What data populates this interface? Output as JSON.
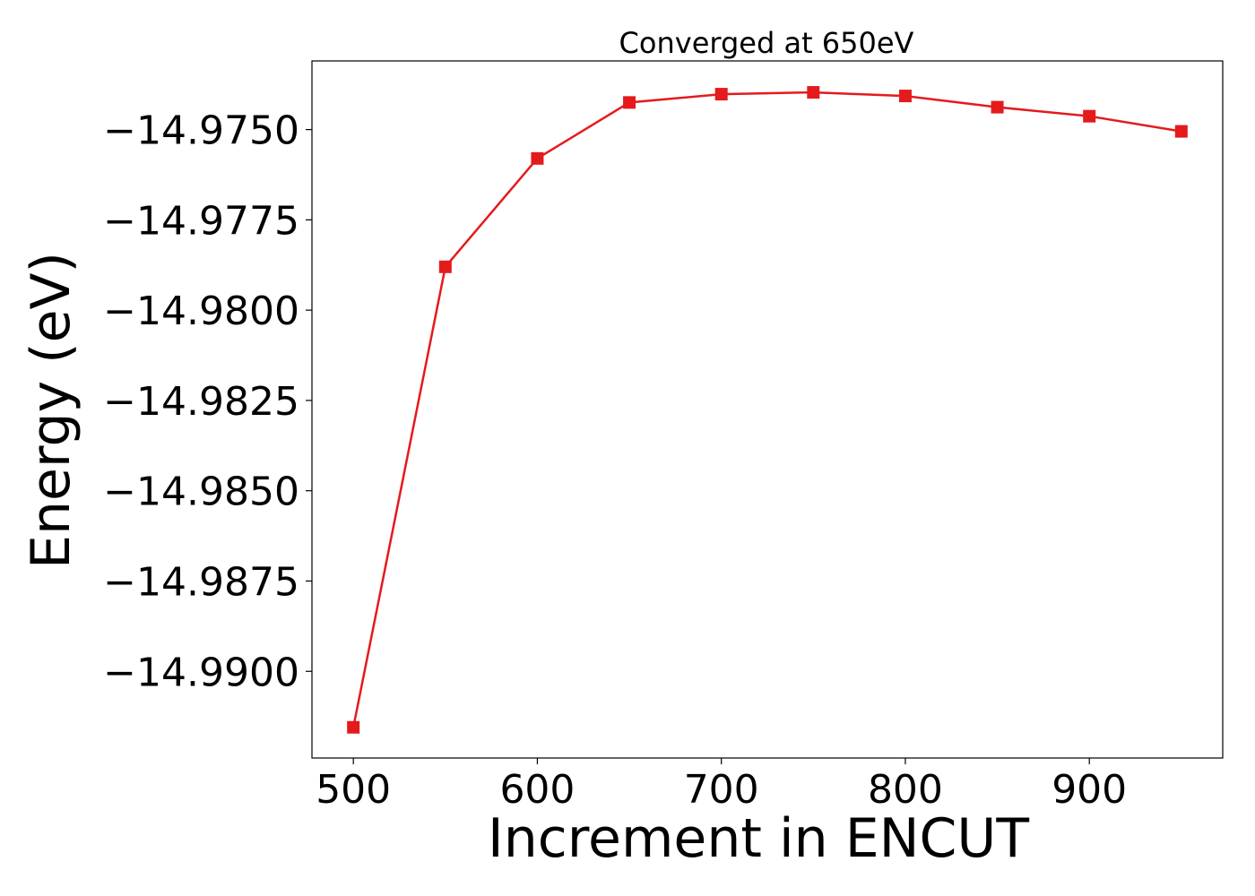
{
  "chart_data": {
    "type": "line",
    "title": "Converged at 650eV",
    "xlabel": "Increment in ENCUT",
    "ylabel": "Energy (eV)",
    "x": [
      500,
      550,
      600,
      650,
      700,
      750,
      800,
      850,
      900,
      950
    ],
    "series": [
      {
        "values": [
          -14.99155,
          -14.9788,
          -14.9758,
          -14.97425,
          -14.97402,
          -14.97397,
          -14.97407,
          -14.97438,
          -14.97463,
          -14.97505
        ],
        "color": "#e41a1c",
        "marker": "square"
      }
    ],
    "xlim": [
      477.5,
      972.5
    ],
    "ylim": [
      -14.9924,
      -14.9731
    ],
    "xticks": [
      500,
      600,
      700,
      800,
      900
    ],
    "xtick_labels": [
      "500",
      "600",
      "700",
      "800",
      "900"
    ],
    "yticks": [
      -14.975,
      -14.9775,
      -14.98,
      -14.9825,
      -14.985,
      -14.9875,
      -14.99
    ],
    "ytick_labels": [
      "−14.9750",
      "−14.9775",
      "−14.9800",
      "−14.9825",
      "−14.9850",
      "−14.9875",
      "−14.9900"
    ],
    "grid": false,
    "legend": "none"
  }
}
